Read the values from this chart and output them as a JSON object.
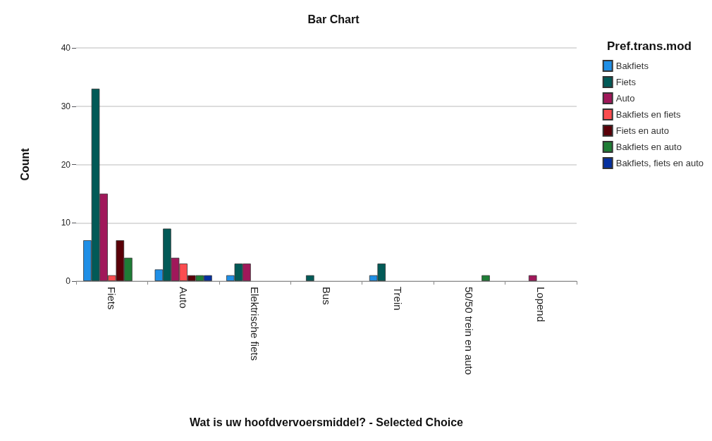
{
  "chart_data": {
    "type": "bar",
    "title": "Bar Chart",
    "xlabel": "Wat is uw hoofdvervoersmiddel? - Selected Choice",
    "ylabel": "Count",
    "legend_title": "Pref.trans.mod",
    "categories": [
      "Fiets",
      "Auto",
      "Elektrische fiets",
      "Bus",
      "Trein",
      "50/50 trein en auto",
      "Lopend"
    ],
    "series": [
      {
        "name": "Bakfiets",
        "color": "#1f8fe6",
        "values": [
          7,
          2,
          1,
          null,
          1,
          null,
          null
        ]
      },
      {
        "name": "Fiets",
        "color": "#025a57",
        "values": [
          33,
          9,
          3,
          1,
          3,
          null,
          null
        ]
      },
      {
        "name": "Auto",
        "color": "#a0185a",
        "values": [
          15,
          4,
          3,
          null,
          null,
          null,
          1
        ]
      },
      {
        "name": "Bakfiets en fiets",
        "color": "#fb4c4f",
        "values": [
          1,
          3,
          null,
          null,
          null,
          null,
          null
        ]
      },
      {
        "name": "Fiets en auto",
        "color": "#5a0008",
        "values": [
          7,
          1,
          null,
          null,
          null,
          null,
          null
        ]
      },
      {
        "name": "Bakfiets en auto",
        "color": "#1f7d36",
        "values": [
          4,
          1,
          null,
          null,
          null,
          1,
          null
        ]
      },
      {
        "name": "Bakfiets, fiets en auto",
        "color": "#0530a0",
        "values": [
          null,
          1,
          null,
          null,
          null,
          null,
          null
        ]
      }
    ],
    "ylim": [
      0,
      40
    ],
    "yticks": [
      0,
      10,
      20,
      30,
      40
    ],
    "grid": "y",
    "legend": "right"
  }
}
